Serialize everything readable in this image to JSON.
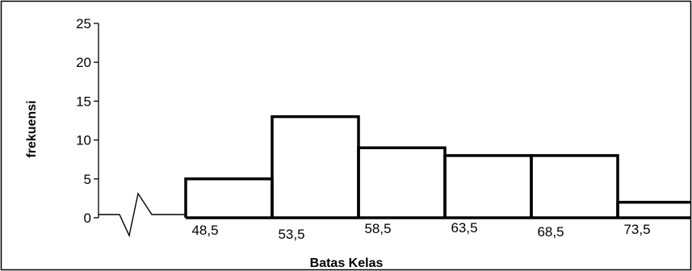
{
  "chart_data": {
    "type": "bar",
    "title": "",
    "xlabel": "Batas Kelas",
    "ylabel": "frekuensi",
    "ylim": [
      0,
      25
    ],
    "yticks": [
      0,
      5,
      10,
      15,
      20,
      25
    ],
    "grid": false,
    "axis_break": true,
    "class_boundaries": [
      "48,5",
      "53,5",
      "58,5",
      "63,5",
      "68,5",
      "73,5"
    ],
    "bins": [
      {
        "from": 48.5,
        "to": 53.5,
        "value": 5
      },
      {
        "from": 53.5,
        "to": 58.5,
        "value": 13
      },
      {
        "from": 58.5,
        "to": 63.5,
        "value": 9
      },
      {
        "from": 63.5,
        "to": 68.5,
        "value": 8
      },
      {
        "from": 68.5,
        "to": 73.5,
        "value": 8
      },
      {
        "from": 73.5,
        "to": 78.5,
        "value": 2
      }
    ]
  }
}
